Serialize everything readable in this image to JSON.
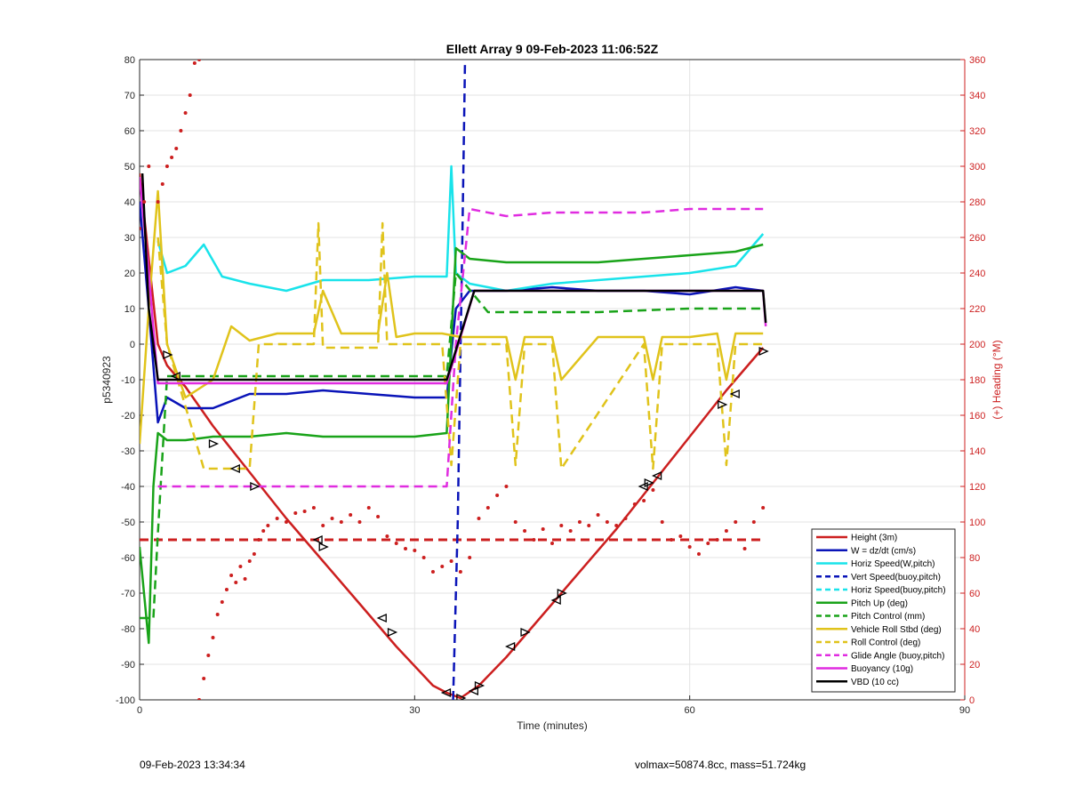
{
  "chart_data": {
    "type": "line",
    "title": "Ellett Array 9 09-Feb-2023 11:06:52Z",
    "xlabel": "Time (minutes)",
    "ylabel": "p5340923",
    "y2label": "(+) Heading (°M)",
    "xlim": [
      0,
      90
    ],
    "ylim": [
      -100,
      80
    ],
    "y2lim": [
      0,
      360
    ],
    "xticks": [
      0,
      30,
      60,
      90
    ],
    "yticks": [
      -100,
      -90,
      -80,
      -70,
      -60,
      -50,
      -40,
      -30,
      -20,
      -10,
      0,
      10,
      20,
      30,
      40,
      50,
      60,
      70,
      80
    ],
    "y2ticks": [
      0,
      20,
      40,
      60,
      80,
      100,
      120,
      140,
      160,
      180,
      200,
      220,
      240,
      260,
      280,
      300,
      320,
      340,
      360
    ],
    "grid": true,
    "legend_position": "bottom-right",
    "series": [
      {
        "name": "Height (3m)",
        "color": "#cc1f1f",
        "style": "solid",
        "x": [
          0,
          2,
          3,
          5,
          8,
          12,
          16,
          20,
          24,
          28,
          32,
          33.5,
          35,
          37,
          40,
          43,
          47,
          52,
          56,
          60,
          64,
          68
        ],
        "y": [
          48,
          0,
          -6,
          -12,
          -23,
          -36,
          -49,
          -61,
          -73,
          -85,
          -96,
          -98,
          -99.5,
          -96,
          -88,
          -79,
          -67,
          -52,
          -39,
          -26,
          -13,
          -1
        ]
      },
      {
        "name": "W = dz/dt (cm/s)",
        "color": "#0a14b8",
        "style": "solid",
        "x": [
          0,
          1,
          2,
          3,
          5,
          8,
          12,
          16,
          20,
          25,
          30,
          33.5,
          34.5,
          36,
          40,
          45,
          50,
          55,
          60,
          65,
          68
        ],
        "y": [
          40,
          10,
          -22,
          -15,
          -18,
          -18,
          -14,
          -14,
          -13,
          -14,
          -15,
          -15,
          10,
          15,
          15,
          16,
          15,
          15,
          14,
          16,
          15
        ]
      },
      {
        "name": "Horiz Speed(W,pitch)",
        "color": "#19e3ea",
        "style": "solid",
        "x": [
          2,
          3,
          5,
          7,
          9,
          12,
          16,
          20,
          25,
          30,
          33.5,
          34,
          34.5,
          36,
          40,
          45,
          50,
          55,
          60,
          65,
          68
        ],
        "y": [
          29,
          20,
          22,
          28,
          19,
          17,
          15,
          18,
          18,
          19,
          19,
          50,
          20,
          17,
          15,
          17,
          18,
          19,
          20,
          22,
          31
        ]
      },
      {
        "name": "Vert Speed(buoy,pitch)",
        "color": "#0a14b8",
        "style": "dashed",
        "x": [
          34.2,
          34.7,
          35.2,
          35.5
        ],
        "y": [
          -100,
          -50,
          30,
          80
        ]
      },
      {
        "name": "Horiz Speed(buoy,pitch)",
        "color": "#19e3ea",
        "style": "dashed",
        "x": [],
        "y": []
      },
      {
        "name": "Pitch Up (deg)",
        "color": "#19a319",
        "style": "solid",
        "x": [
          0,
          1,
          1.5,
          2,
          3,
          5,
          8,
          12,
          16,
          20,
          25,
          30,
          33.5,
          34.5,
          36,
          40,
          45,
          50,
          55,
          60,
          65,
          68
        ],
        "y": [
          -57,
          -84,
          -40,
          -25,
          -27,
          -27,
          -26,
          -26,
          -25,
          -26,
          -26,
          -26,
          -25,
          27,
          24,
          23,
          23,
          23,
          24,
          25,
          26,
          28
        ]
      },
      {
        "name": "Pitch Control (mm)",
        "color": "#19a319",
        "style": "dashed",
        "x": [
          0,
          1.5,
          2,
          3,
          10,
          20,
          30,
          33.5,
          34.5,
          38,
          50,
          60,
          68
        ],
        "y": [
          -77,
          -77,
          -53,
          -9,
          -9,
          -9,
          -9,
          -9,
          20,
          9,
          9,
          10,
          10
        ]
      },
      {
        "name": "Vehicle Roll Stbd (deg)",
        "color": "#e0c31b",
        "style": "solid",
        "x": [
          0,
          1,
          2,
          3,
          5,
          8,
          10,
          12,
          15,
          19,
          20,
          22,
          26,
          27,
          28,
          30,
          33,
          35,
          40,
          41,
          42,
          45,
          46,
          50,
          55,
          56,
          57,
          60,
          63,
          64,
          65,
          68
        ],
        "y": [
          -28,
          10,
          43,
          0,
          -15,
          -10,
          5,
          1,
          3,
          3,
          15,
          3,
          3,
          20,
          2,
          3,
          3,
          2,
          2,
          -10,
          2,
          2,
          -10,
          2,
          2,
          -10,
          2,
          2,
          3,
          -10,
          3,
          3
        ]
      },
      {
        "name": "Roll Control (deg)",
        "color": "#e0c31b",
        "style": "dashed",
        "x": [
          2,
          3,
          7,
          8,
          12,
          13,
          19,
          19.5,
          20,
          26,
          26.5,
          27,
          30,
          33,
          34,
          35,
          40,
          41,
          42,
          45,
          46,
          55,
          56,
          57,
          63,
          64,
          65,
          68
        ],
        "y": [
          30,
          0,
          -35,
          -35,
          -35,
          0,
          0,
          34,
          -1,
          -1,
          34,
          0,
          0,
          0,
          -34,
          0,
          0,
          -34,
          0,
          0,
          -35,
          0,
          -35,
          0,
          0,
          -34,
          0,
          0
        ]
      },
      {
        "name": "Glide Angle (buoy,pitch)",
        "color": "#e02ce0",
        "style": "dashed",
        "x": [
          2,
          5,
          10,
          15,
          20,
          25,
          30,
          33.5,
          34.5,
          36,
          40,
          45,
          50,
          55,
          60,
          65,
          68
        ],
        "y": [
          -40,
          -40,
          -40,
          -40,
          -40,
          -40,
          -40,
          -40,
          0,
          38,
          36,
          37,
          37,
          37,
          38,
          38,
          38
        ]
      },
      {
        "name": "Buoyancy (10g)",
        "color": "#e02ce0",
        "style": "solid",
        "x": [
          0,
          1,
          2,
          33.5,
          36.5,
          68,
          68.3
        ],
        "y": [
          47,
          20,
          -11,
          -11,
          15,
          15,
          5
        ]
      },
      {
        "name": "VBD (10 cc)",
        "color": "#000000",
        "style": "solid",
        "x": [
          0.3,
          1,
          2,
          33.5,
          36.5,
          68,
          68.3
        ],
        "y": [
          48,
          10,
          -10,
          -10,
          15,
          15,
          6
        ]
      }
    ],
    "heading_series": {
      "axis": "right",
      "color": "#cc1f1f",
      "marker": "dot",
      "x": [
        0,
        0.5,
        1,
        2,
        2.5,
        3,
        3.5,
        4,
        4.5,
        5,
        5.5,
        6,
        6.5,
        6.5,
        7,
        7.5,
        8,
        8.5,
        9,
        9.5,
        10,
        10.5,
        11,
        11.5,
        12,
        12.5,
        13,
        13.5,
        14,
        15,
        16,
        17,
        18,
        19,
        20,
        21,
        22,
        23,
        24,
        25,
        26,
        27,
        28,
        29,
        30,
        31,
        32,
        33,
        34,
        35,
        36,
        37,
        38,
        39,
        40,
        41,
        42,
        43,
        44,
        45,
        46,
        47,
        48,
        49,
        50,
        51,
        52,
        53,
        54,
        55,
        56,
        57,
        58,
        59,
        60,
        61,
        62,
        63,
        64,
        65,
        66,
        67,
        68
      ],
      "y": [
        265,
        280,
        300,
        280,
        290,
        300,
        305,
        310,
        320,
        330,
        340,
        358,
        360,
        0,
        12,
        25,
        35,
        48,
        55,
        62,
        70,
        66,
        75,
        68,
        78,
        82,
        90,
        95,
        98,
        102,
        100,
        105,
        106,
        108,
        98,
        102,
        100,
        104,
        100,
        108,
        103,
        92,
        88,
        85,
        84,
        80,
        72,
        75,
        78,
        72,
        80,
        102,
        108,
        115,
        120,
        100,
        95,
        90,
        96,
        88,
        98,
        95,
        100,
        98,
        104,
        100,
        98,
        102,
        110,
        112,
        118,
        100,
        90,
        92,
        86,
        82,
        88,
        90,
        95,
        100,
        85,
        100,
        108
      ]
    },
    "heading_reference": {
      "value": 90,
      "color": "#cc1f1f",
      "style": "dashed",
      "x": [
        0,
        68
      ]
    },
    "markers": {
      "type": "triangle",
      "on_series": "Height (3m)",
      "x": [
        3,
        4,
        8,
        10.5,
        12.5,
        19.5,
        20,
        26.5,
        27.5,
        33.5,
        35,
        36.5,
        37,
        40.5,
        42,
        45.5,
        46,
        55,
        55.5,
        56.5,
        63.5,
        65,
        68
      ],
      "y": [
        -3,
        -9,
        -28,
        -35,
        -40,
        -55,
        -57,
        -77,
        -81,
        -98,
        -99.5,
        -97.5,
        -96,
        -85,
        -81,
        -72,
        -70,
        -40,
        -39,
        -37,
        -17,
        -14,
        -2
      ]
    }
  },
  "footer": {
    "left": "09-Feb-2023 13:34:34",
    "right": "volmax=50874.8cc, mass=51.724kg"
  }
}
